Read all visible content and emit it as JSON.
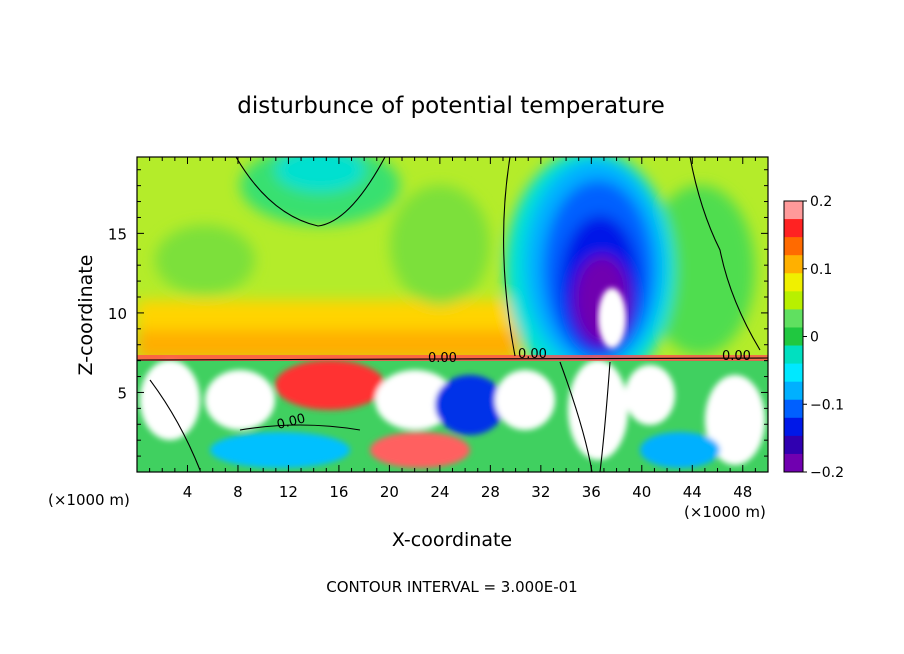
{
  "chart_data": {
    "type": "heatmap",
    "title": "disturbunce of potential temperature",
    "xlabel": "X-coordinate",
    "ylabel": "Z-coordinate",
    "x_unit_left": "(×1000 m)",
    "x_unit_right": "(×1000 m)",
    "xlim": [
      0,
      50
    ],
    "ylim": [
      0,
      19.8
    ],
    "x_ticks": [
      "4",
      "8",
      "12",
      "16",
      "20",
      "24",
      "28",
      "32",
      "36",
      "40",
      "44",
      "48"
    ],
    "y_ticks": [
      "5",
      "10",
      "15"
    ],
    "colorbar": {
      "min": -0.2,
      "max": 0.2,
      "tick_labels": [
        "0.2",
        "0.1",
        "0",
        "−0.1",
        "−0.2"
      ],
      "colors": [
        "#ff9a9a",
        "#ff2222",
        "#ff6a00",
        "#ffb000",
        "#f0f000",
        "#b8f000",
        "#60e060",
        "#20c840",
        "#00e0c0",
        "#00e8ff",
        "#00b0ff",
        "#0060ff",
        "#0018e8",
        "#3000b0",
        "#7000b0"
      ]
    },
    "contour_labels": [
      "0.00",
      "0.00",
      "0.00",
      "0.00"
    ],
    "footer": "CONTOUR INTERVAL = 3.000E-01"
  }
}
